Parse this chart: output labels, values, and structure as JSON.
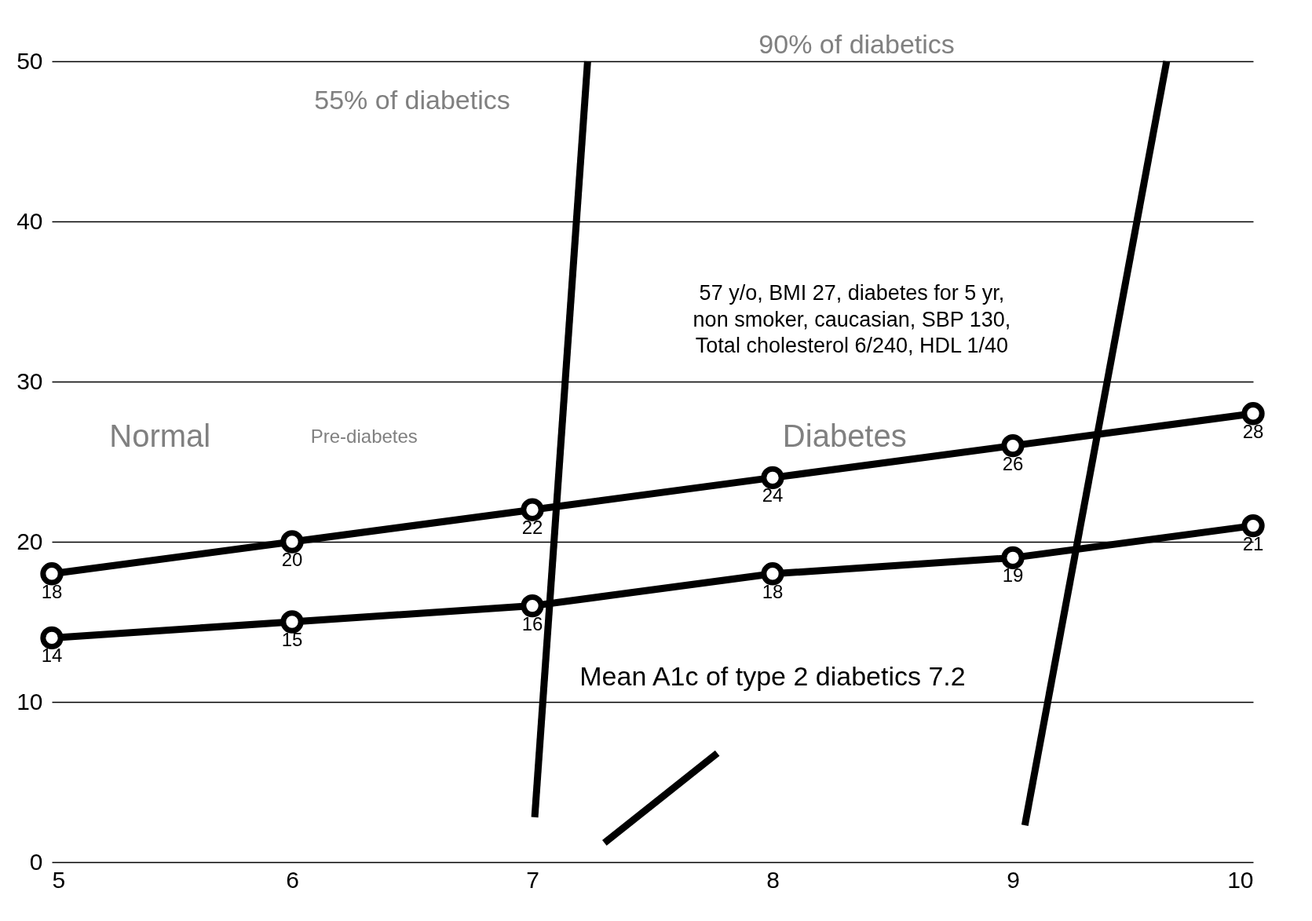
{
  "chart_data": {
    "type": "line",
    "x": [
      5,
      6,
      7,
      8,
      9,
      10
    ],
    "xlim": [
      5,
      10
    ],
    "xticks": [
      5,
      6,
      7,
      8,
      9,
      10
    ],
    "ylim": [
      0,
      50
    ],
    "yticks": [
      0,
      10,
      20,
      30,
      40,
      50
    ],
    "grid": "y",
    "marker": "circle",
    "line_style": "solid",
    "series": [
      {
        "color": "#000000",
        "values": [
          18,
          20,
          22,
          24,
          26,
          28
        ],
        "value_labels": [
          "18",
          "20",
          "22",
          "24",
          "26",
          "28"
        ]
      },
      {
        "color": "#000000",
        "values": [
          14,
          15,
          16,
          18,
          19,
          21
        ],
        "value_labels": [
          "14",
          "15",
          "16",
          "18",
          "19",
          "21"
        ]
      },
      {
        "color": "#000000",
        "marker": "none",
        "x": [
          7.01,
          7.23
        ],
        "values": [
          2.8,
          50
        ]
      },
      {
        "color": "#000000",
        "marker": "none",
        "x": [
          9.05,
          9.64
        ],
        "values": [
          2.3,
          50
        ]
      },
      {
        "color": "#000000",
        "marker": "none",
        "x": [
          7.3,
          7.77
        ],
        "values": [
          1.2,
          6.8
        ]
      }
    ],
    "annotations": [
      "55% of diabetics",
      "90% of diabetics",
      "57 y/o,  BMI 27, diabetes for 5 yr, non smoker, caucasian, SBP 130, Total cholesterol 6/240, HDL 1/40",
      "Normal",
      "Pre-diabetes",
      "Diabetes",
      "Mean A1c of type 2 diabetics 7.2"
    ]
  }
}
